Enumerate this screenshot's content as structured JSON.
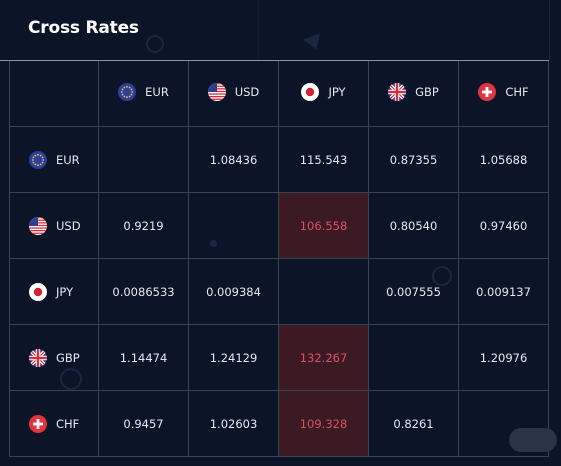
{
  "widget": {
    "title": "Cross Rates"
  },
  "currencies": [
    {
      "code": "EUR",
      "flag": "eu-flag-icon"
    },
    {
      "code": "USD",
      "flag": "us-flag-icon"
    },
    {
      "code": "JPY",
      "flag": "jp-flag-icon"
    },
    {
      "code": "GBP",
      "flag": "gb-flag-icon"
    },
    {
      "code": "CHF",
      "flag": "ch-flag-icon"
    }
  ],
  "rows": [
    {
      "code": "EUR",
      "values": [
        "",
        "1.08436",
        "115.543",
        "0.87355",
        "1.05688"
      ]
    },
    {
      "code": "USD",
      "values": [
        "0.9219",
        "",
        "106.558",
        "0.80540",
        "0.97460"
      ]
    },
    {
      "code": "JPY",
      "values": [
        "0.0086533",
        "0.009384",
        "",
        "0.007555",
        "0.009137"
      ]
    },
    {
      "code": "GBP",
      "values": [
        "1.14474",
        "1.24129",
        "132.267",
        "",
        "1.20976"
      ]
    },
    {
      "code": "CHF",
      "values": [
        "0.9457",
        "1.02603",
        "109.328",
        "0.8261",
        ""
      ]
    }
  ],
  "highlighted_cells": [
    {
      "row": 1,
      "col": 2
    },
    {
      "row": 3,
      "col": 2
    },
    {
      "row": 4,
      "col": 2
    }
  ],
  "colors": {
    "background": "#0c1428",
    "grid_line": "#3a4356",
    "highlight_bg": "#3b1a24",
    "highlight_text": "#e0505f",
    "text": "#e6e9f2"
  }
}
